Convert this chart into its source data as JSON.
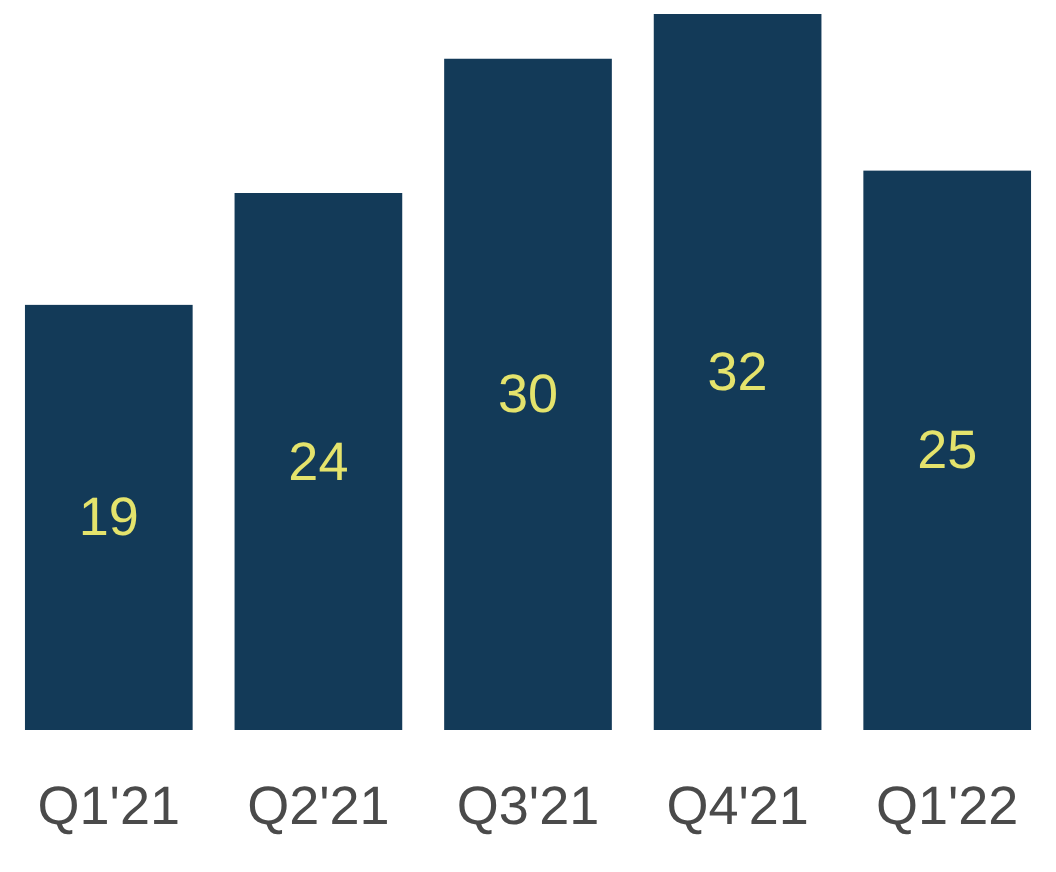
{
  "chart_data": {
    "type": "bar",
    "categories": [
      "Q1'21",
      "Q2'21",
      "Q3'21",
      "Q4'21",
      "Q1'22"
    ],
    "values": [
      19,
      24,
      30,
      32,
      25
    ],
    "color": "#133a58",
    "data_labels": true
  }
}
